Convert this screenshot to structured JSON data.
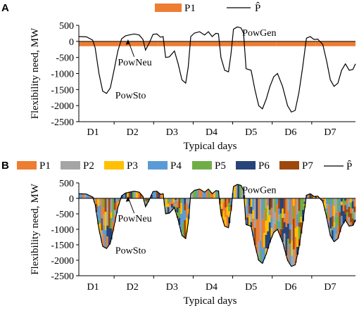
{
  "colors": {
    "P1": "#ED7D31",
    "P2": "#A5A5A5",
    "P3": "#FFC000",
    "P4": "#5B9BD5",
    "P5": "#70AD47",
    "P6": "#264478",
    "P7": "#9E480E",
    "line": "#000000"
  },
  "chart_data": [
    {
      "panel": "A",
      "type": "area",
      "ylabel": "Flexibility need, MW",
      "xlabel": "Typical days",
      "ylim": [
        -2500,
        500
      ],
      "yticks": [
        500,
        0,
        -500,
        -1000,
        -1500,
        -2000,
        -2500
      ],
      "categories": [
        "D1",
        "D2",
        "D3",
        "D4",
        "D5",
        "D6",
        "D7"
      ],
      "legend": [
        {
          "key": "P1",
          "label": "P1",
          "kind": "fill"
        },
        {
          "key": "line",
          "label": "P̂",
          "kind": "line"
        }
      ],
      "series": [
        {
          "name": "P1",
          "values_per_day": [
            -150,
            -150,
            -150,
            -150,
            -150,
            -150,
            -150
          ]
        },
        {
          "name": "P̂",
          "points": [
            [
              0,
              150
            ],
            [
              0.3,
              140
            ],
            [
              0.55,
              40
            ],
            [
              0.65,
              -200
            ],
            [
              0.8,
              -1000
            ],
            [
              0.95,
              -1550
            ],
            [
              1.1,
              -1620
            ],
            [
              1.25,
              -1450
            ],
            [
              1.4,
              -900
            ],
            [
              1.55,
              -300
            ],
            [
              1.7,
              80
            ],
            [
              1.85,
              170
            ],
            [
              2.0,
              200
            ],
            [
              2.2,
              230
            ],
            [
              2.4,
              200
            ],
            [
              2.55,
              60
            ],
            [
              2.65,
              -270
            ],
            [
              2.8,
              -50
            ],
            [
              2.95,
              220
            ],
            [
              3.1,
              230
            ],
            [
              3.25,
              130
            ],
            [
              3.35,
              150
            ],
            [
              3.45,
              -500
            ],
            [
              3.6,
              -480
            ],
            [
              3.8,
              -300
            ],
            [
              3.95,
              -700
            ],
            [
              4.1,
              -1200
            ],
            [
              4.25,
              -1300
            ],
            [
              4.35,
              -800
            ],
            [
              4.45,
              150
            ],
            [
              4.6,
              260
            ],
            [
              4.8,
              300
            ],
            [
              5.0,
              200
            ],
            [
              5.15,
              300
            ],
            [
              5.3,
              150
            ],
            [
              5.45,
              250
            ],
            [
              5.55,
              240
            ],
            [
              5.65,
              -500
            ],
            [
              5.8,
              -900
            ],
            [
              5.95,
              -950
            ],
            [
              6.05,
              -400
            ],
            [
              6.15,
              380
            ],
            [
              6.3,
              450
            ],
            [
              6.45,
              420
            ],
            [
              6.55,
              250
            ],
            [
              6.65,
              -850
            ],
            [
              6.85,
              -900
            ],
            [
              7.0,
              -1500
            ],
            [
              7.15,
              -2000
            ],
            [
              7.3,
              -2100
            ],
            [
              7.45,
              -1800
            ],
            [
              7.6,
              -1400
            ],
            [
              7.75,
              -1100
            ],
            [
              7.9,
              -1000
            ],
            [
              8.1,
              -1400
            ],
            [
              8.3,
              -2000
            ],
            [
              8.45,
              -2200
            ],
            [
              8.6,
              -2150
            ],
            [
              8.75,
              -1600
            ],
            [
              8.9,
              -800
            ],
            [
              9.05,
              100
            ],
            [
              9.2,
              150
            ],
            [
              9.35,
              60
            ],
            [
              9.5,
              70
            ],
            [
              9.7,
              -100
            ],
            [
              9.85,
              -600
            ],
            [
              10.0,
              -1200
            ],
            [
              10.15,
              -1400
            ],
            [
              10.3,
              -1300
            ],
            [
              10.45,
              -900
            ],
            [
              10.6,
              -700
            ],
            [
              10.75,
              -900
            ],
            [
              10.9,
              -870
            ],
            [
              11.0,
              -700
            ]
          ]
        }
      ],
      "annotations": [
        "PowGen",
        "PowNeu",
        "PowSto"
      ]
    },
    {
      "panel": "B",
      "type": "area",
      "ylabel": "Flexibility need, MW",
      "xlabel": "Typical days",
      "ylim": [
        -2500,
        500
      ],
      "yticks": [
        500,
        0,
        -500,
        -1000,
        -1500,
        -2000,
        -2500
      ],
      "categories": [
        "D1",
        "D2",
        "D3",
        "D4",
        "D5",
        "D6",
        "D7"
      ],
      "legend": [
        {
          "key": "P1",
          "label": "P1",
          "kind": "fill"
        },
        {
          "key": "P2",
          "label": "P2",
          "kind": "fill"
        },
        {
          "key": "P3",
          "label": "P3",
          "kind": "fill"
        },
        {
          "key": "P4",
          "label": "P4",
          "kind": "fill"
        },
        {
          "key": "P5",
          "label": "P5",
          "kind": "fill"
        },
        {
          "key": "P6",
          "label": "P6",
          "kind": "fill"
        },
        {
          "key": "P7",
          "label": "P7",
          "kind": "fill"
        },
        {
          "key": "line",
          "label": "P̂",
          "kind": "line"
        }
      ],
      "series_order": [
        "P1",
        "P2",
        "P3",
        "P4",
        "P5",
        "P6",
        "P7"
      ],
      "annotations": [
        "PowGen",
        "PowNeu",
        "PowSto"
      ]
    }
  ]
}
